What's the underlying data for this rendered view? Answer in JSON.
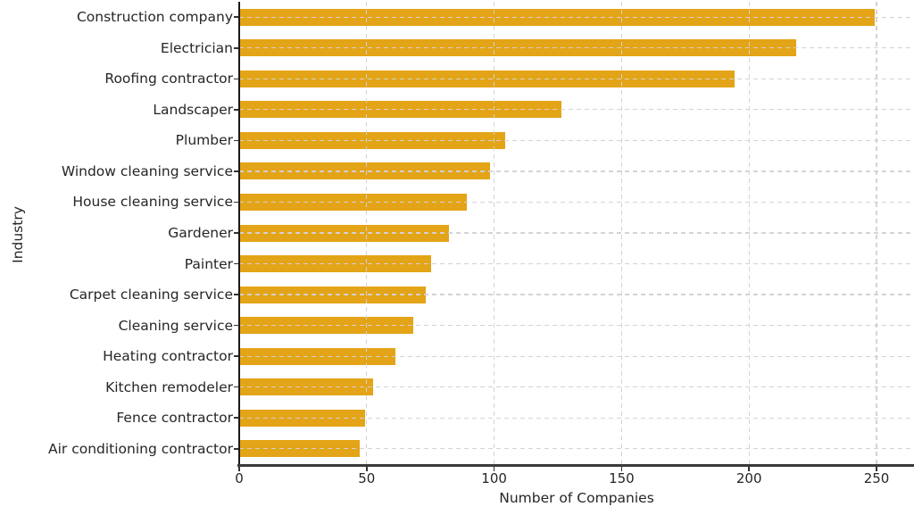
{
  "chart_data": {
    "type": "bar",
    "orientation": "horizontal",
    "title": "",
    "xlabel": "Number of Companies",
    "ylabel": "Industry",
    "categories": [
      "Construction company",
      "Electrician",
      "Roofing contractor",
      "Landscaper",
      "Plumber",
      "Window cleaning service",
      "House cleaning service",
      "Gardener",
      "Painter",
      "Carpet cleaning service",
      "Cleaning service",
      "Heating contractor",
      "Kitchen remodeler",
      "Fence contractor",
      "Air conditioning contractor"
    ],
    "values": [
      249,
      218,
      194,
      126,
      104,
      98,
      89,
      82,
      75,
      73,
      68,
      61,
      52,
      49,
      47
    ],
    "xticks": [
      0,
      50,
      100,
      150,
      200,
      250
    ],
    "xtick_labels": [
      "0",
      "50",
      "100",
      "150",
      "200",
      "250"
    ],
    "xlim": [
      0,
      264.7
    ],
    "grid": true,
    "grid_style": "dashed",
    "legend_position": "none",
    "bar_color": "#E4A417",
    "grid_color": "#d2d2d2",
    "axis_color": "#262626",
    "background_color": "#ffffff"
  }
}
